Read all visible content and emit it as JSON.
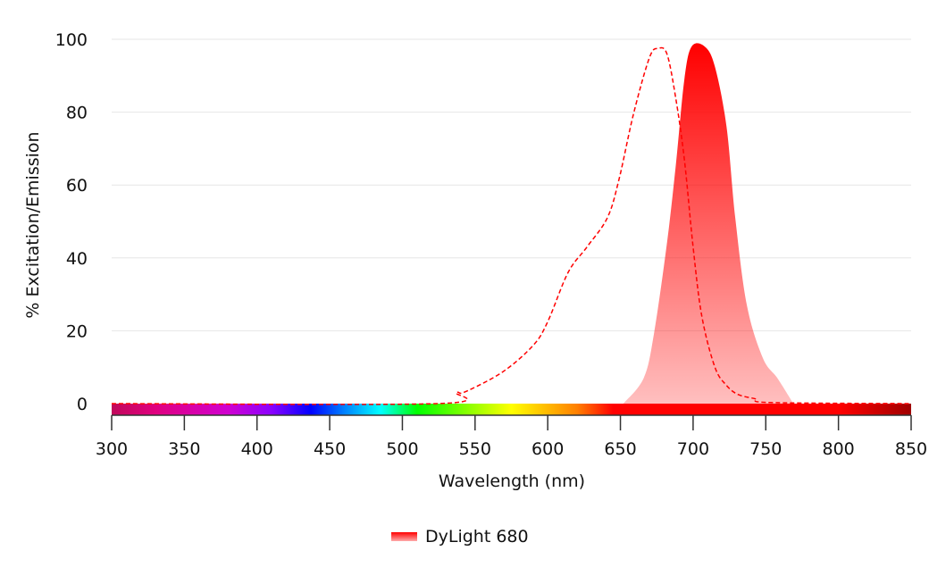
{
  "chart_data": {
    "type": "area",
    "title": "",
    "xlabel": "Wavelength (nm)",
    "ylabel": "% Excitation/Emission",
    "xlim": [
      300,
      850
    ],
    "ylim": [
      0,
      100
    ],
    "xticks": [
      300,
      350,
      400,
      450,
      500,
      550,
      600,
      650,
      700,
      750,
      800,
      850
    ],
    "yticks": [
      0,
      20,
      40,
      60,
      80,
      100
    ],
    "grid": true,
    "legend_position": "bottom",
    "series": [
      {
        "name": "DyLight 680",
        "color": "#ff0000",
        "excitation": {
          "style": "dashed",
          "x": [
            300,
            524,
            537,
            543,
            569,
            590,
            600,
            614,
            627,
            641,
            649,
            659,
            670,
            676,
            682,
            688,
            694,
            700,
            706,
            715,
            723,
            731,
            743,
            753,
            850
          ],
          "y": [
            0,
            0,
            3,
            3.2,
            8.7,
            16,
            22.5,
            36,
            43,
            51,
            61.5,
            79.5,
            95,
            97.5,
            96,
            84,
            67,
            43,
            24,
            10,
            5,
            2.5,
            1.3,
            0.3,
            0
          ]
        },
        "emission": {
          "style": "filled-gradient",
          "x": [
            652,
            666,
            673,
            682,
            688,
            694,
            699,
            708,
            715,
            723,
            729,
            737,
            748,
            758,
            769
          ],
          "y": [
            0,
            7,
            19,
            44,
            65,
            89,
            98,
            98,
            92.5,
            76,
            51,
            27,
            12.5,
            7,
            0
          ]
        }
      }
    ],
    "spectrum_bar": {
      "stops": [
        {
          "nm": 300,
          "color": "#c0085a"
        },
        {
          "nm": 330,
          "color": "#e0007f"
        },
        {
          "nm": 380,
          "color": "#d000d0"
        },
        {
          "nm": 410,
          "color": "#8a00ff"
        },
        {
          "nm": 437,
          "color": "#0000ff"
        },
        {
          "nm": 460,
          "color": "#0080ff"
        },
        {
          "nm": 485,
          "color": "#00ffff"
        },
        {
          "nm": 510,
          "color": "#00ff00"
        },
        {
          "nm": 575,
          "color": "#ffff00"
        },
        {
          "nm": 620,
          "color": "#ff8000"
        },
        {
          "nm": 645,
          "color": "#ff0000"
        },
        {
          "nm": 800,
          "color": "#ff0000"
        },
        {
          "nm": 850,
          "color": "#a00000"
        }
      ]
    }
  }
}
